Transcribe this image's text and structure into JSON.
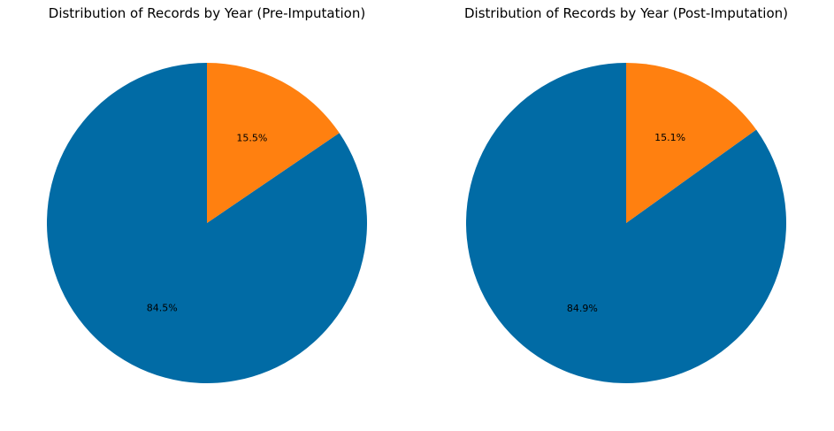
{
  "chart_data": [
    {
      "type": "pie",
      "title": "Distribution of Records by Year (Pre-Imputation)",
      "start_angle": 90,
      "direction": "counterclockwise",
      "slices": [
        {
          "value": 84.5,
          "label": "84.5%",
          "color": "#016ba5"
        },
        {
          "value": 15.5,
          "label": "15.5%",
          "color": "#ff8010"
        }
      ]
    },
    {
      "type": "pie",
      "title": "Distribution of Records by Year (Post-Imputation)",
      "start_angle": 90,
      "direction": "counterclockwise",
      "slices": [
        {
          "value": 84.9,
          "label": "84.9%",
          "color": "#016ba5"
        },
        {
          "value": 15.1,
          "label": "15.1%",
          "color": "#ff8010"
        }
      ]
    }
  ]
}
